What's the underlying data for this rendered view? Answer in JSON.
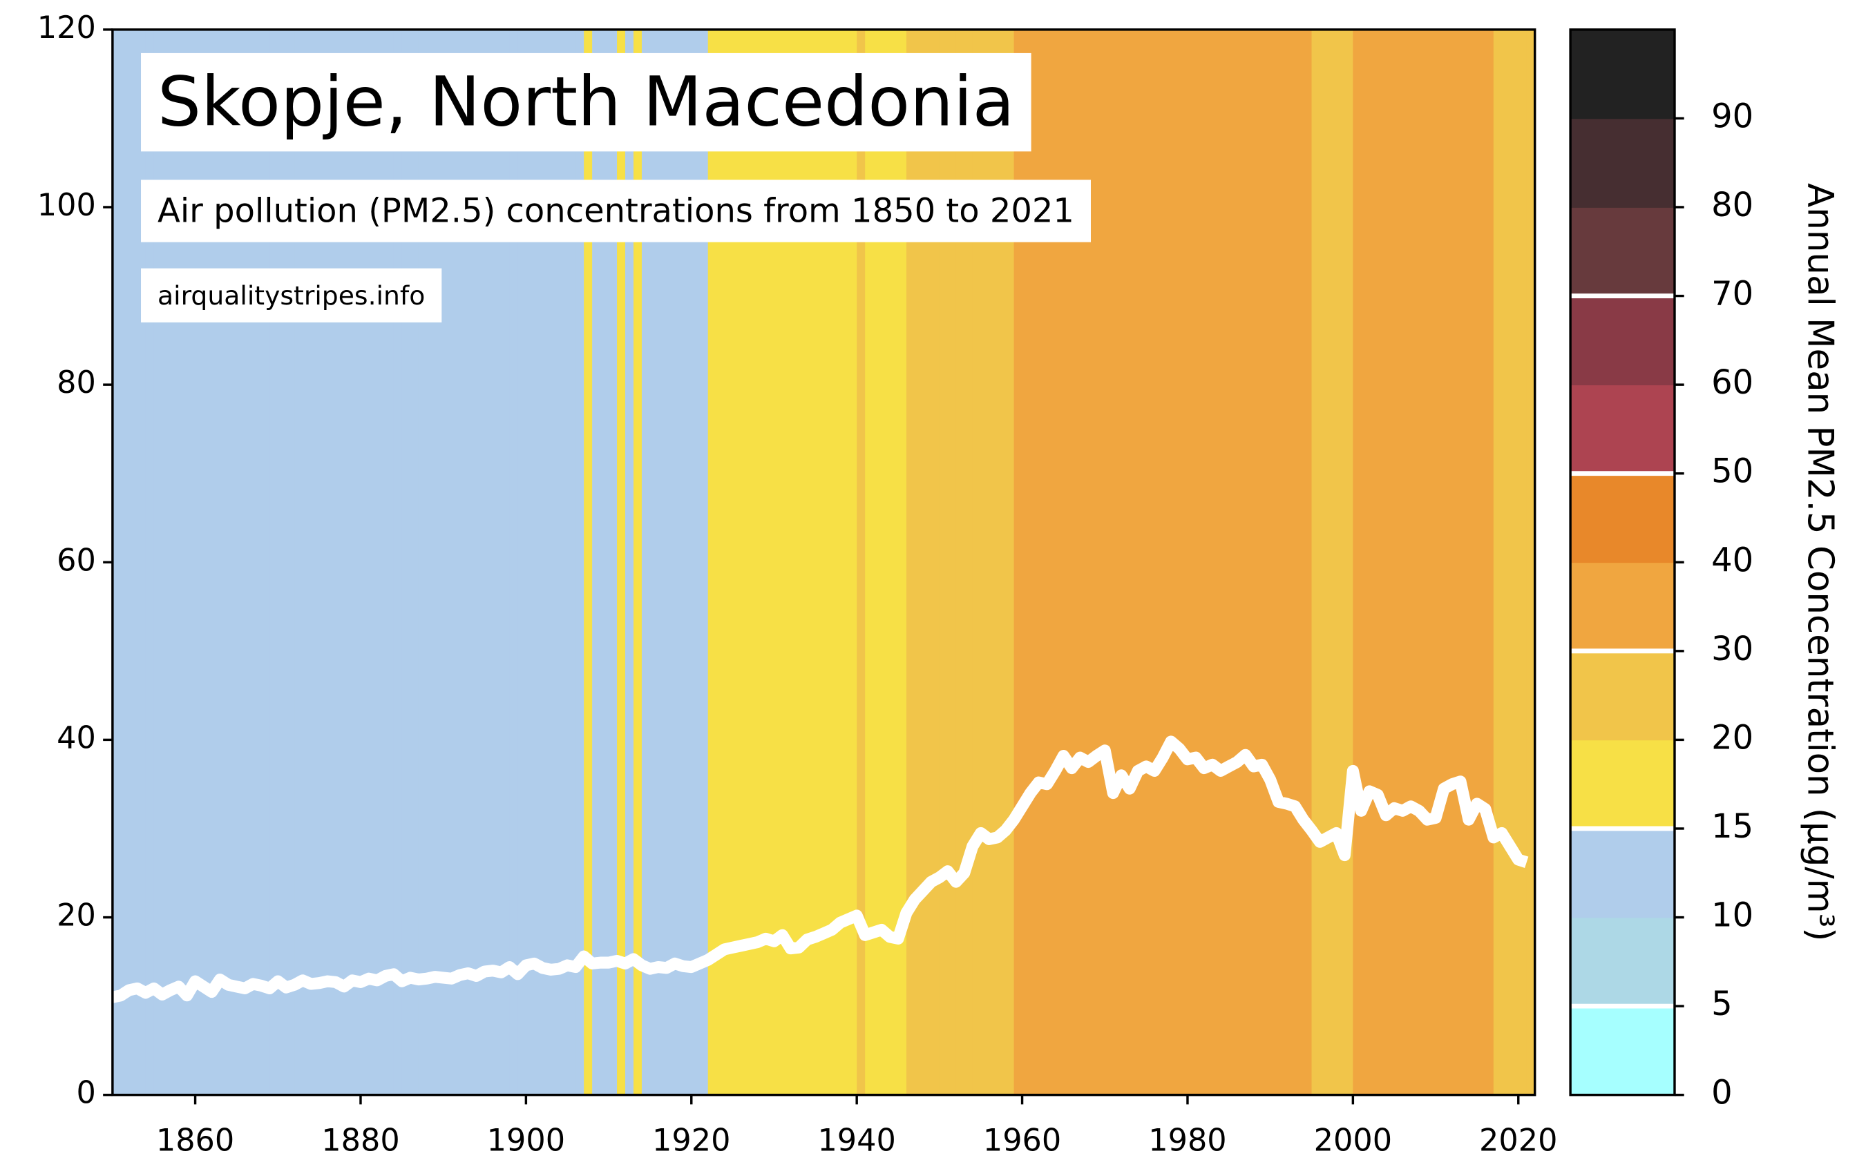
{
  "chart_data": {
    "type": "line",
    "title": "Skopje, North Macedonia",
    "subtitle": "Air pollution (PM2.5) concentrations from 1850 to 2021",
    "source": "airqualitystripes.info",
    "x": [
      1850,
      1851,
      1852,
      1853,
      1854,
      1855,
      1856,
      1857,
      1858,
      1859,
      1860,
      1861,
      1862,
      1863,
      1864,
      1865,
      1866,
      1867,
      1868,
      1869,
      1870,
      1871,
      1872,
      1873,
      1874,
      1875,
      1876,
      1877,
      1878,
      1879,
      1880,
      1881,
      1882,
      1883,
      1884,
      1885,
      1886,
      1887,
      1888,
      1889,
      1890,
      1891,
      1892,
      1893,
      1894,
      1895,
      1896,
      1897,
      1898,
      1899,
      1900,
      1901,
      1902,
      1903,
      1904,
      1905,
      1906,
      1907,
      1908,
      1909,
      1910,
      1911,
      1912,
      1913,
      1914,
      1915,
      1916,
      1917,
      1918,
      1919,
      1920,
      1921,
      1922,
      1923,
      1924,
      1925,
      1926,
      1927,
      1928,
      1929,
      1930,
      1931,
      1932,
      1933,
      1934,
      1935,
      1936,
      1937,
      1938,
      1939,
      1940,
      1941,
      1942,
      1943,
      1944,
      1945,
      1946,
      1947,
      1948,
      1949,
      1950,
      1951,
      1952,
      1953,
      1954,
      1955,
      1956,
      1957,
      1958,
      1959,
      1960,
      1961,
      1962,
      1963,
      1964,
      1965,
      1966,
      1967,
      1968,
      1969,
      1970,
      1971,
      1972,
      1973,
      1974,
      1975,
      1976,
      1977,
      1978,
      1979,
      1980,
      1981,
      1982,
      1983,
      1984,
      1985,
      1986,
      1987,
      1988,
      1989,
      1990,
      1991,
      1992,
      1993,
      1994,
      1995,
      1996,
      1997,
      1998,
      1999,
      2000,
      2001,
      2002,
      2003,
      2004,
      2005,
      2006,
      2007,
      2008,
      2009,
      2010,
      2011,
      2012,
      2013,
      2014,
      2015,
      2016,
      2017,
      2018,
      2019,
      2020,
      2021
    ],
    "series": [
      {
        "color": "#ffffff",
        "values": [
          11,
          11.2,
          11.8,
          12,
          11.5,
          12,
          11.3,
          11.8,
          12.2,
          11.2,
          12.8,
          12.2,
          11.6,
          13,
          12.4,
          12.2,
          12,
          12.5,
          12.3,
          12,
          12.8,
          12.1,
          12.4,
          12.9,
          12.5,
          12.6,
          12.8,
          12.7,
          12.2,
          12.9,
          12.7,
          13.1,
          12.9,
          13.4,
          13.6,
          12.8,
          13.2,
          13,
          13.1,
          13.3,
          13.2,
          13.1,
          13.5,
          13.7,
          13.4,
          13.9,
          14,
          13.8,
          14.4,
          13.6,
          14.6,
          14.8,
          14.3,
          14.1,
          14.2,
          14.6,
          14.4,
          15.6,
          14.8,
          14.9,
          14.9,
          15.1,
          14.8,
          15.3,
          14.6,
          14.2,
          14.4,
          14.3,
          14.8,
          14.5,
          14.4,
          14.8,
          15.2,
          15.8,
          16.4,
          16.6,
          16.8,
          17,
          17.2,
          17.6,
          17.3,
          18,
          16.5,
          16.6,
          17.5,
          17.8,
          18.2,
          18.6,
          19.4,
          19.8,
          20.2,
          18,
          18.3,
          18.6,
          17.8,
          17.6,
          20.5,
          22,
          23,
          24,
          24.5,
          25.2,
          24,
          25,
          28,
          29.5,
          28.8,
          29,
          29.8,
          31,
          32.5,
          34,
          35.2,
          35,
          36.5,
          38.2,
          36.8,
          38,
          37.5,
          38.2,
          38.8,
          34,
          36,
          34.5,
          36.5,
          37,
          36.5,
          38,
          39.8,
          39,
          37.8,
          38,
          36.8,
          37.2,
          36.5,
          37,
          37.5,
          38.3,
          37,
          37.2,
          35.5,
          33,
          32.8,
          32.5,
          31,
          29.8,
          28.5,
          29,
          29.5,
          27,
          36.5,
          32,
          34.2,
          33.8,
          31.5,
          32.3,
          32,
          32.5,
          32,
          31,
          31.2,
          34.5,
          35,
          35.3,
          31,
          32.8,
          32.2,
          29,
          29.5,
          28,
          26.5,
          26.2
        ]
      }
    ],
    "xlim": [
      1850,
      2022
    ],
    "xticks": [
      1860,
      1880,
      1900,
      1920,
      1940,
      1960,
      1980,
      2000,
      2020
    ],
    "ylim": [
      0,
      120
    ],
    "yticks": [
      0,
      20,
      40,
      60,
      80,
      100,
      120
    ],
    "colorbar": {
      "label": "Annual Mean PM2.5 Concentration (µg/m³)",
      "boundaries": [
        0,
        5,
        10,
        15,
        20,
        30,
        40,
        50,
        60,
        70,
        80,
        90
      ],
      "colors": [
        "#a6ffff",
        "#add8e6",
        "#b0cdeb",
        "#f7e046",
        "#f1c54a",
        "#f0a640",
        "#e8882a",
        "#ad4451",
        "#893a46",
        "#673a3d",
        "#462e31",
        "#222222"
      ],
      "lines": [
        5,
        15,
        30,
        50,
        70
      ]
    }
  }
}
